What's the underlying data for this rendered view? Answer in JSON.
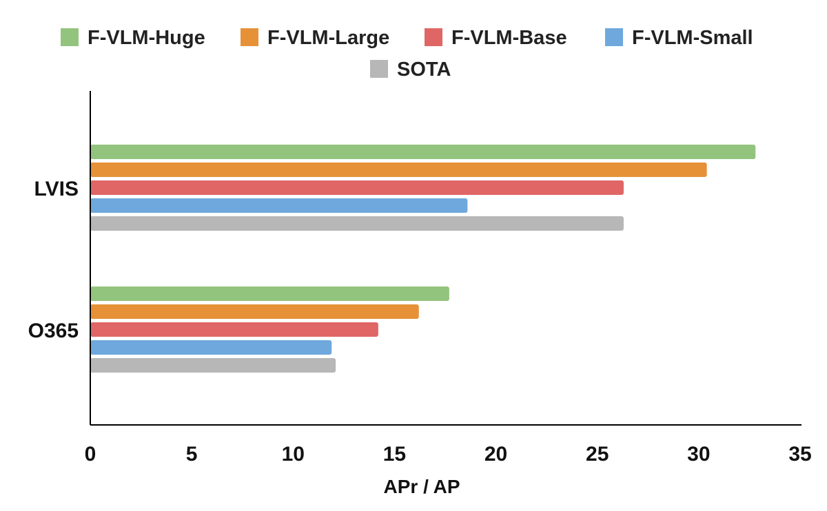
{
  "chart_data": {
    "type": "bar",
    "orientation": "horizontal",
    "categories": [
      "LVIS",
      "O365"
    ],
    "series": [
      {
        "name": "F-VLM-Huge",
        "color": "#93c47d",
        "values": [
          32.8,
          17.7
        ]
      },
      {
        "name": "F-VLM-Large",
        "color": "#e69138",
        "values": [
          30.4,
          16.2
        ]
      },
      {
        "name": "F-VLM-Base",
        "color": "#e06666",
        "values": [
          26.3,
          14.2
        ]
      },
      {
        "name": "F-VLM-Small",
        "color": "#6fa8dc",
        "values": [
          18.6,
          11.9
        ]
      },
      {
        "name": "SOTA",
        "color": "#b7b7b7",
        "values": [
          26.3,
          12.1
        ]
      }
    ],
    "xlim": [
      0,
      35
    ],
    "xticks": [
      0,
      5,
      10,
      15,
      20,
      25,
      30,
      35
    ],
    "xlabel": "APr / AP",
    "ylabel": "",
    "title": "",
    "grid": false,
    "legend_position": "top"
  }
}
